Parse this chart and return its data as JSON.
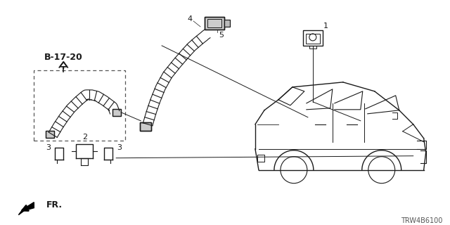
{
  "ref_label": "B-17-20",
  "fr_label": "FR.",
  "diagram_code": "TRW4B6100",
  "bg_color": "#ffffff",
  "line_color": "#1a1a1a",
  "font_size_label": 8,
  "font_size_code": 7
}
